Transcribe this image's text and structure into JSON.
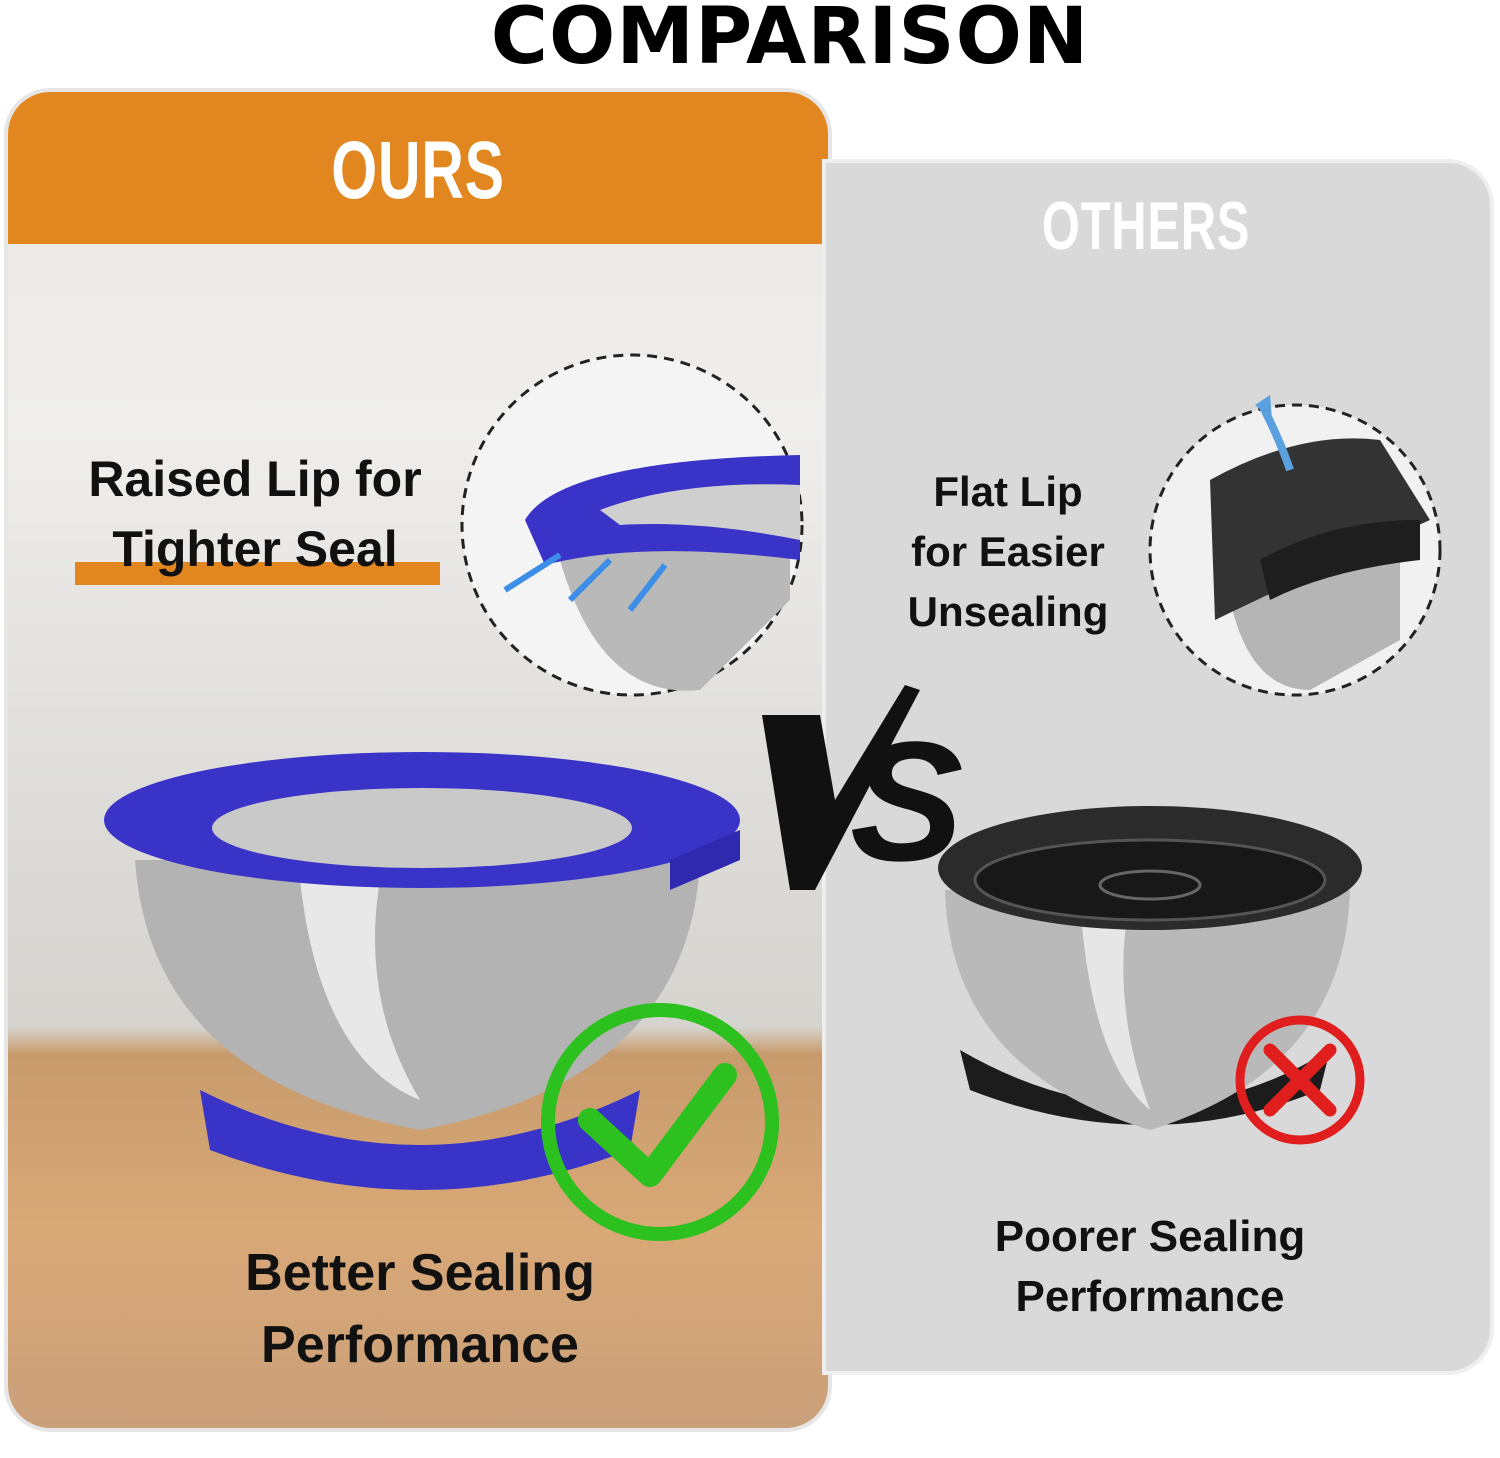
{
  "title": "COMPARISON",
  "ours": {
    "header": "OURS",
    "feature_line1": "Raised Lip for",
    "feature_line2": "Tighter Seal",
    "result_line1": "Better Sealing",
    "result_line2": "Performance",
    "verdict_icon": "check-icon"
  },
  "others": {
    "header": "OTHERS",
    "feature_line1": "Flat Lip",
    "feature_line2": "for Easier",
    "feature_line3": "Unsealing",
    "result_line1": "Poorer Sealing",
    "result_line2": "Performance",
    "verdict_icon": "x-icon"
  },
  "vs": "VS",
  "colors": {
    "accent": "#E2871F",
    "lid_ours": "#3A33C8",
    "lid_others": "#2E2E2E",
    "check": "#2DC11F",
    "cross": "#E01E1E",
    "others_panel": "#D9D9D9"
  }
}
